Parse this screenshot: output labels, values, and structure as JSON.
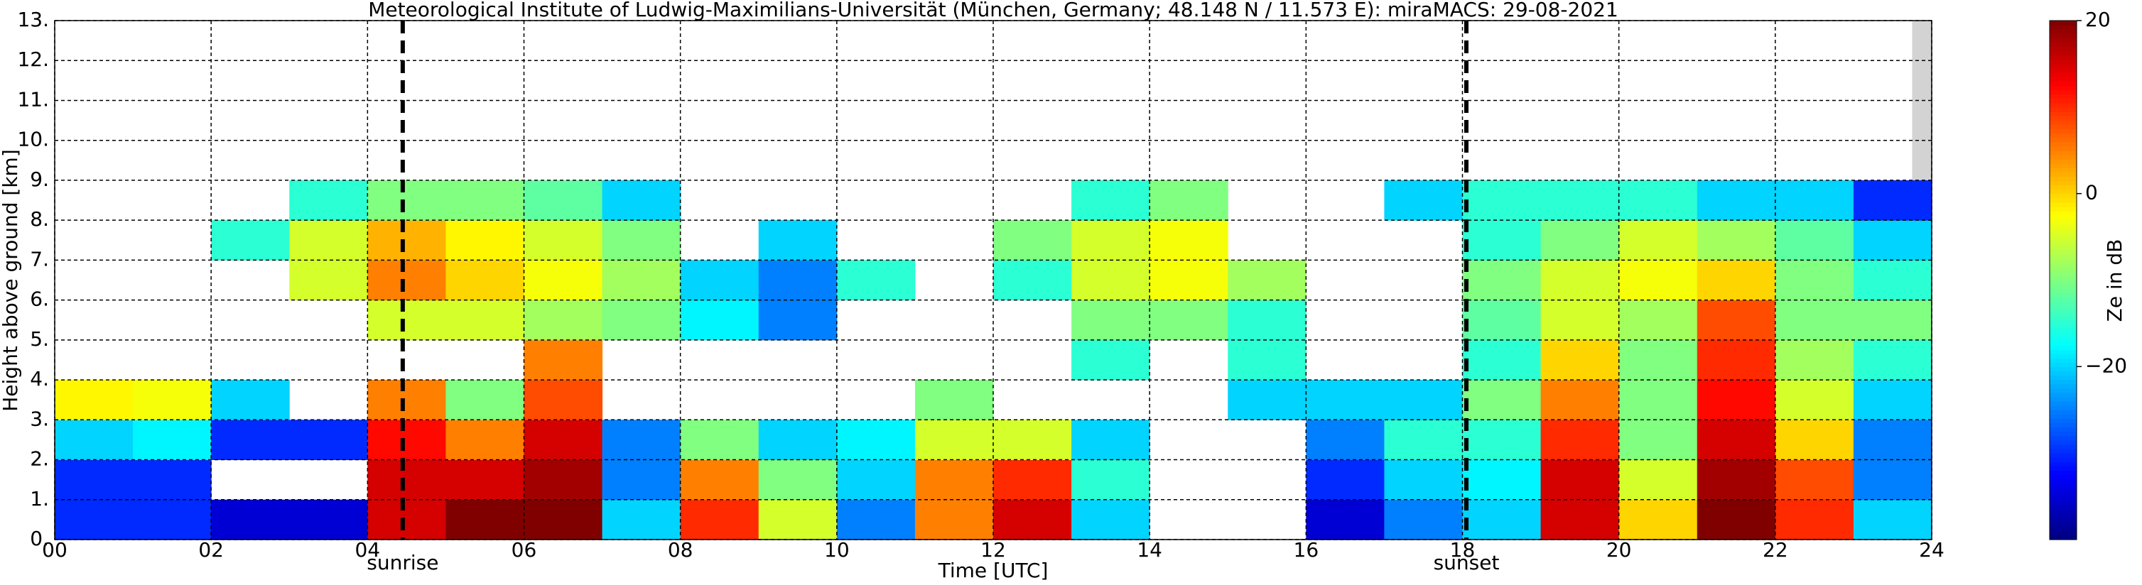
{
  "chart_data": {
    "type": "heatmap",
    "title": "Meteorological Institute of Ludwig-Maximilians-Universität (München, Germany; 48.148 N / 11.573 E):    miraMACS: 29-08-2021",
    "xlabel": "Time [UTC]",
    "ylabel": "Height above ground [km]",
    "colorbar_label": "Ze in dB",
    "colormap": "jet",
    "grid": true,
    "xlim": [
      0,
      24
    ],
    "ylim": [
      0,
      13
    ],
    "zlim": [
      -40,
      20
    ],
    "xticks": [
      {
        "value": 0,
        "label": "00"
      },
      {
        "value": 2,
        "label": "02"
      },
      {
        "value": 4,
        "label": "04"
      },
      {
        "value": 6,
        "label": "06"
      },
      {
        "value": 8,
        "label": "08"
      },
      {
        "value": 10,
        "label": "10"
      },
      {
        "value": 12,
        "label": "12"
      },
      {
        "value": 14,
        "label": "14"
      },
      {
        "value": 16,
        "label": "16"
      },
      {
        "value": 18,
        "label": "18"
      },
      {
        "value": 20,
        "label": "20"
      },
      {
        "value": 22,
        "label": "22"
      },
      {
        "value": 24,
        "label": "24"
      }
    ],
    "yticks": [
      {
        "value": 0,
        "label": "0."
      },
      {
        "value": 1,
        "label": "1."
      },
      {
        "value": 2,
        "label": "2."
      },
      {
        "value": 3,
        "label": "3."
      },
      {
        "value": 4,
        "label": "4."
      },
      {
        "value": 5,
        "label": "5."
      },
      {
        "value": 6,
        "label": "6."
      },
      {
        "value": 7,
        "label": "7."
      },
      {
        "value": 8,
        "label": "8."
      },
      {
        "value": 9,
        "label": "9."
      },
      {
        "value": 10,
        "label": "10."
      },
      {
        "value": 11,
        "label": "11."
      },
      {
        "value": 12,
        "label": "12."
      },
      {
        "value": 13,
        "label": "13."
      }
    ],
    "zticks": [
      20,
      0,
      {
        "value": -20,
        "label": "−20"
      }
    ],
    "x_bins": [
      0,
      1,
      2,
      3,
      4,
      5,
      6,
      7,
      8,
      9,
      10,
      11,
      12,
      13,
      14,
      15,
      16,
      17,
      18,
      19,
      20,
      21,
      22,
      23,
      24
    ],
    "y_bins": [
      0,
      1,
      2,
      3,
      4,
      5,
      6,
      7,
      8,
      9
    ],
    "z": [
      [
        -30,
        -30,
        -20,
        -2,
        null,
        null,
        null,
        null,
        null
      ],
      [
        -30,
        -30,
        -18,
        -3,
        null,
        null,
        null,
        null,
        null
      ],
      [
        -35,
        null,
        -30,
        -20,
        null,
        null,
        null,
        -15,
        null
      ],
      [
        -35,
        null,
        -30,
        null,
        null,
        null,
        -5,
        -5,
        -15
      ],
      [
        15,
        15,
        12,
        5,
        null,
        -5,
        5,
        2,
        -10
      ],
      [
        20,
        15,
        5,
        -10,
        null,
        -5,
        0,
        -2,
        -10
      ],
      [
        20,
        18,
        15,
        8,
        5,
        -8,
        -3,
        -5,
        -12
      ],
      [
        -20,
        -25,
        -25,
        null,
        null,
        -10,
        -8,
        -10,
        -20
      ],
      [
        10,
        5,
        -10,
        null,
        null,
        -18,
        -20,
        null,
        null
      ],
      [
        -5,
        -10,
        -20,
        null,
        null,
        -25,
        -25,
        -20,
        null
      ],
      [
        -25,
        -20,
        -18,
        null,
        null,
        null,
        -15,
        null,
        null
      ],
      [
        5,
        5,
        -5,
        -10,
        null,
        null,
        null,
        null,
        null
      ],
      [
        15,
        10,
        -5,
        null,
        null,
        null,
        -15,
        -10,
        null
      ],
      [
        -20,
        -15,
        -20,
        null,
        -15,
        -10,
        -5,
        -5,
        -15
      ],
      [
        null,
        null,
        null,
        null,
        null,
        -10,
        -3,
        -3,
        -10
      ],
      [
        null,
        null,
        null,
        -20,
        -15,
        -15,
        -8,
        null,
        null
      ],
      [
        -35,
        -30,
        -25,
        -20,
        null,
        null,
        null,
        null,
        null
      ],
      [
        -25,
        -20,
        -15,
        -20,
        null,
        null,
        null,
        null,
        -20
      ],
      [
        -20,
        -18,
        -15,
        -10,
        -15,
        -12,
        -10,
        -15,
        -15
      ],
      [
        15,
        15,
        10,
        5,
        0,
        -5,
        -5,
        -10,
        -15
      ],
      [
        0,
        -5,
        -10,
        -10,
        -10,
        -8,
        -3,
        -5,
        -15
      ],
      [
        20,
        18,
        15,
        12,
        10,
        8,
        0,
        -8,
        -20
      ],
      [
        10,
        8,
        0,
        -5,
        -8,
        -10,
        -10,
        -12,
        -20
      ],
      [
        -20,
        -25,
        -25,
        -20,
        -15,
        -10,
        -15,
        -20,
        -30
      ]
    ],
    "annotations": [
      {
        "x": 4.45,
        "label": "sunrise"
      },
      {
        "x": 18.05,
        "label": "sunset"
      }
    ]
  }
}
